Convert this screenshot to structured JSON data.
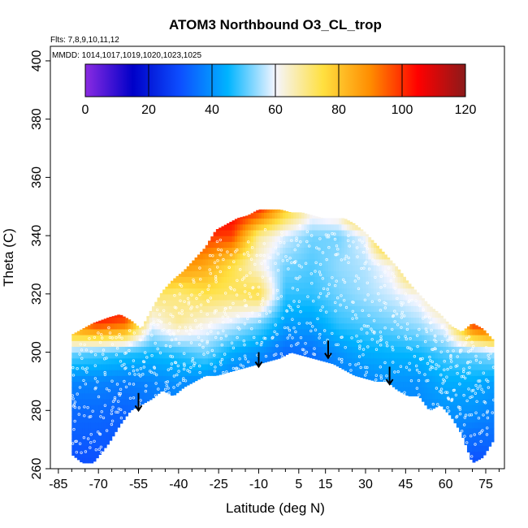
{
  "chart_data": {
    "type": "heatmap",
    "title": "ATOM3 Northbound O3_CL_trop",
    "notes": {
      "flights": "Flts: 7,8,9,10,11,12",
      "dates": "MMDD: 1014,1017,1019,1020,1023,1025"
    },
    "xlabel": "Latitude (deg N)",
    "ylabel": "Theta (C)",
    "xlim": [
      -88,
      82
    ],
    "ylim": [
      260,
      405
    ],
    "x_ticks": [
      -85,
      -70,
      -55,
      -40,
      -25,
      -10,
      5,
      15,
      30,
      45,
      60,
      75
    ],
    "y_ticks": [
      260,
      280,
      300,
      320,
      340,
      360,
      380,
      400
    ],
    "colorbar": {
      "range": [
        0,
        120
      ],
      "ticks": [
        0,
        20,
        40,
        60,
        80,
        100,
        120
      ],
      "colors": [
        "#8b2be2",
        "#0000c8",
        "#0d4fff",
        "#00b4ff",
        "#f5f5ff",
        "#ffe040",
        "#ff8c00",
        "#ff0000",
        "#8b1a1a"
      ]
    },
    "profile_boundary": {
      "lat": [
        -80,
        -76,
        -72,
        -66,
        -62,
        -58,
        -54,
        -50,
        -46,
        -42,
        -38,
        -34,
        -30,
        -26,
        -22,
        -18,
        -14,
        -10,
        -6,
        -2,
        2,
        6,
        10,
        14,
        18,
        22,
        26,
        30,
        34,
        38,
        42,
        46,
        50,
        54,
        58,
        62,
        66,
        70,
        74,
        78
      ],
      "theta_low": [
        265,
        262,
        262,
        269,
        275,
        280,
        282,
        284,
        287,
        285,
        288,
        290,
        292,
        292,
        293,
        294,
        295,
        296,
        297,
        298,
        300,
        299,
        298,
        297,
        296,
        294,
        292,
        291,
        290,
        290,
        287,
        285,
        285,
        280,
        282,
        278,
        272,
        262,
        264,
        270
      ],
      "theta_high": [
        306,
        308,
        310,
        312,
        313,
        311,
        308,
        315,
        321,
        325,
        328,
        332,
        336,
        342,
        344,
        346,
        347,
        349,
        349,
        349,
        348,
        348,
        347,
        346,
        346,
        346,
        344,
        341,
        337,
        333,
        329,
        324,
        320,
        316,
        313,
        309,
        307,
        310,
        308,
        304
      ]
    },
    "ozone_grid": {
      "lat": [
        -80,
        -70,
        -60,
        -50,
        -40,
        -30,
        -20,
        -10,
        0,
        10,
        20,
        30,
        40,
        50,
        60,
        70,
        78
      ],
      "theta": [
        262,
        270,
        280,
        290,
        300,
        310,
        320,
        330,
        340,
        350
      ],
      "values": [
        [
          30,
          30,
          30,
          32,
          33,
          32,
          32,
          28,
          22,
          24,
          30,
          32,
          34,
          35,
          38,
          30,
          30
        ],
        [
          32,
          32,
          31,
          33,
          34,
          33,
          33,
          30,
          25,
          26,
          32,
          34,
          36,
          36,
          38,
          34,
          34
        ],
        [
          34,
          34,
          33,
          35,
          36,
          34,
          34,
          32,
          28,
          28,
          34,
          36,
          38,
          38,
          40,
          40,
          38
        ],
        [
          38,
          38,
          37,
          38,
          40,
          38,
          36,
          35,
          30,
          30,
          36,
          38,
          40,
          40,
          44,
          44,
          42
        ],
        [
          52,
          50,
          48,
          46,
          48,
          52,
          44,
          40,
          34,
          35,
          40,
          44,
          45,
          46,
          50,
          52,
          55
        ],
        [
          95,
          100,
          95,
          60,
          68,
          62,
          58,
          52,
          42,
          42,
          48,
          50,
          52,
          55,
          62,
          100,
          110
        ],
        [
          115,
          115,
          110,
          72,
          70,
          74,
          72,
          75,
          48,
          48,
          52,
          55,
          58,
          62,
          75,
          115,
          115
        ],
        [
          115,
          115,
          110,
          98,
          90,
          85,
          75,
          62,
          52,
          50,
          54,
          56,
          62,
          92,
          110,
          115,
          115
        ],
        [
          115,
          115,
          110,
          112,
          110,
          100,
          98,
          68,
          58,
          52,
          52,
          60,
          102,
          110,
          112,
          115,
          115
        ],
        [
          115,
          115,
          110,
          112,
          112,
          112,
          110,
          105,
          82,
          65,
          70,
          100,
          110,
          112,
          112,
          115,
          115
        ]
      ]
    },
    "arrows": [
      {
        "lat": -55,
        "theta_top": 286,
        "theta_bottom": 280
      },
      {
        "lat": -10,
        "theta_top": 300,
        "theta_bottom": 295
      },
      {
        "lat": 16,
        "theta_top": 304,
        "theta_bottom": 298
      },
      {
        "lat": 39,
        "theta_top": 295,
        "theta_bottom": 289
      }
    ]
  }
}
